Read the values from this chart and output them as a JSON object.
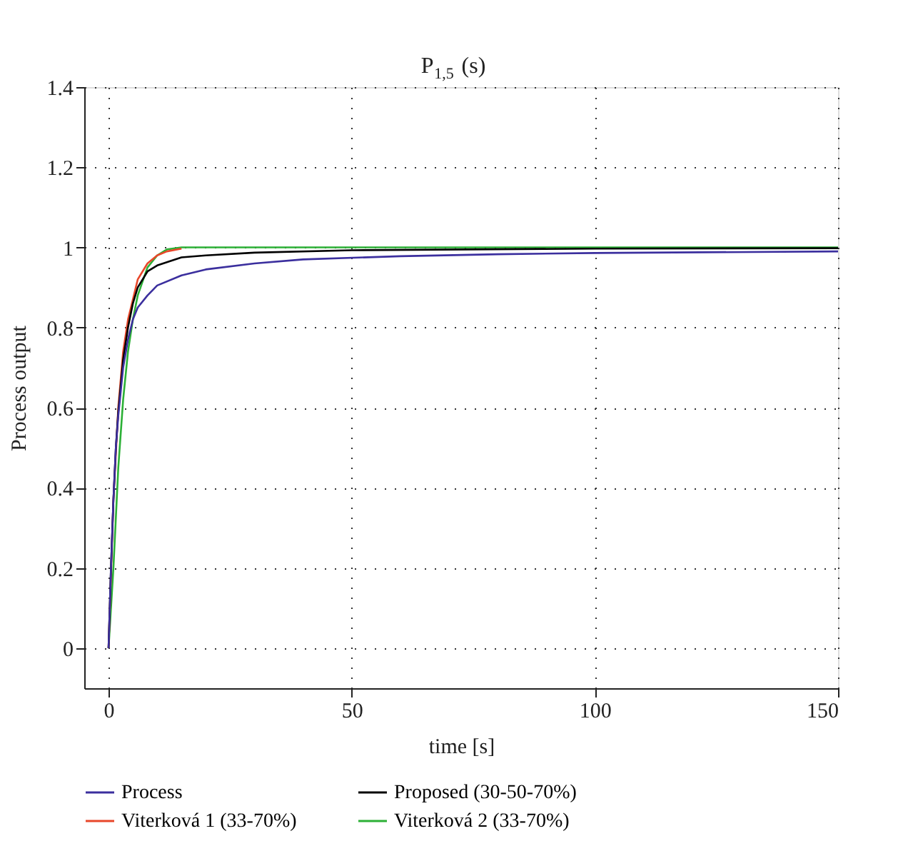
{
  "chart_data": {
    "type": "line",
    "title": "P$_{1,5}$(s)",
    "xlabel": "time [s]",
    "ylabel": "Process output",
    "xlim": [
      -5,
      150
    ],
    "xticks": [
      0,
      50,
      100,
      150
    ],
    "ylim": [
      -0.1,
      1.4
    ],
    "yticks": [
      0,
      0.2,
      0.4,
      0.6,
      0.8,
      1,
      1.2,
      1.4
    ],
    "grid": true,
    "legend": "bottom",
    "line_style": "solid",
    "marker": "none",
    "series": [
      {
        "name": "Process",
        "color": "#3b2f9e",
        "x": [
          0,
          0.5,
          1,
          1.5,
          2,
          3,
          4,
          5,
          6,
          8,
          10,
          15,
          20,
          30,
          40,
          60,
          80,
          100,
          150
        ],
        "values": [
          0,
          0.2,
          0.37,
          0.5,
          0.58,
          0.7,
          0.77,
          0.82,
          0.85,
          0.88,
          0.905,
          0.93,
          0.945,
          0.96,
          0.97,
          0.978,
          0.983,
          0.986,
          0.99
        ]
      },
      {
        "name": "Proposed (30-50-70%)",
        "color": "#000000",
        "x": [
          0,
          0.5,
          1,
          1.5,
          2,
          3,
          4,
          5,
          6,
          8,
          10,
          15,
          20,
          30,
          50,
          100,
          150
        ],
        "values": [
          0,
          0.2,
          0.37,
          0.5,
          0.59,
          0.72,
          0.8,
          0.86,
          0.9,
          0.94,
          0.955,
          0.975,
          0.98,
          0.987,
          0.993,
          0.997,
          0.998
        ]
      },
      {
        "name": "Viterková 1 (33-70%)",
        "color": "#e8472a",
        "x": [
          0,
          1,
          2,
          3,
          4,
          6,
          8,
          10,
          12,
          15
        ],
        "values": [
          0,
          0.37,
          0.6,
          0.74,
          0.82,
          0.92,
          0.96,
          0.98,
          0.99,
          0.997
        ]
      },
      {
        "name": "Viterková 2 (33-70%)",
        "color": "#2cb036",
        "x": [
          0,
          1,
          2,
          3,
          4,
          5,
          6,
          8,
          10,
          12,
          15,
          50,
          100,
          150
        ],
        "values": [
          0,
          0.2,
          0.45,
          0.62,
          0.74,
          0.82,
          0.88,
          0.95,
          0.98,
          0.995,
          1.0,
          1.0,
          1.0,
          1.0
        ]
      }
    ]
  }
}
